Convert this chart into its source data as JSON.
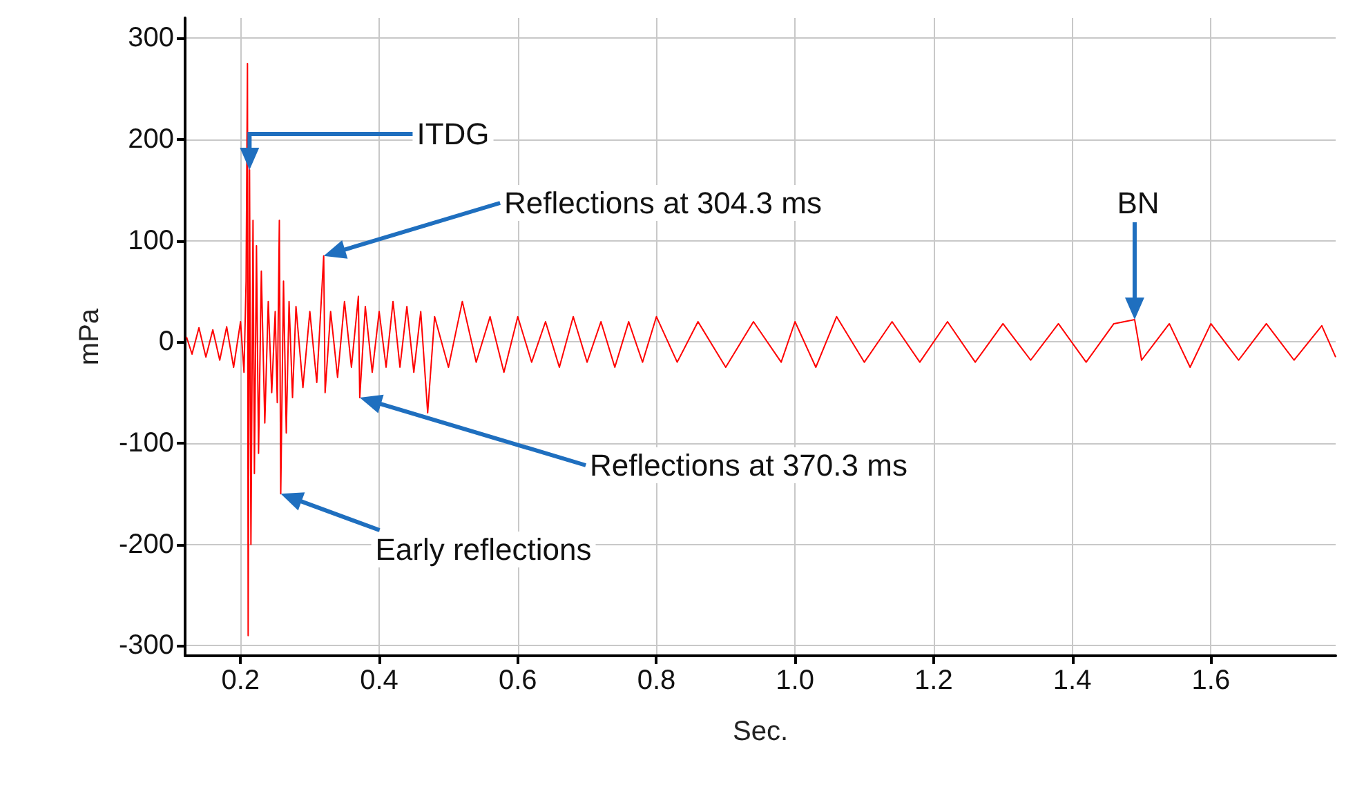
{
  "chart_data": {
    "type": "line",
    "xlabel": "Sec.",
    "ylabel": "mPa",
    "xlim": [
      0.12,
      1.78
    ],
    "ylim": [
      -310,
      320
    ],
    "xticks": [
      0.2,
      0.4,
      0.6,
      0.8,
      {
        "value": 1.0,
        "label": "1.0"
      },
      1.2,
      1.4,
      1.6
    ],
    "yticks": [
      -300,
      -200,
      -100,
      0,
      100,
      200,
      300
    ],
    "grid": true,
    "marker": "none",
    "line_style": "solid",
    "x": [
      0.122,
      0.13,
      0.14,
      0.15,
      0.16,
      0.17,
      0.18,
      0.19,
      0.2,
      0.205,
      0.208,
      0.21,
      0.211,
      0.213,
      0.215,
      0.218,
      0.22,
      0.223,
      0.226,
      0.23,
      0.235,
      0.24,
      0.245,
      0.25,
      0.253,
      0.256,
      0.258,
      0.262,
      0.266,
      0.27,
      0.275,
      0.28,
      0.29,
      0.3,
      0.31,
      0.32,
      0.322,
      0.33,
      0.34,
      0.35,
      0.36,
      0.37,
      0.372,
      0.38,
      0.39,
      0.4,
      0.41,
      0.42,
      0.43,
      0.44,
      0.45,
      0.46,
      0.47,
      0.48,
      0.5,
      0.52,
      0.54,
      0.56,
      0.58,
      0.6,
      0.62,
      0.64,
      0.66,
      0.68,
      0.7,
      0.72,
      0.74,
      0.76,
      0.78,
      0.8,
      0.83,
      0.86,
      0.9,
      0.94,
      0.98,
      1.0,
      1.03,
      1.06,
      1.1,
      1.14,
      1.18,
      1.22,
      1.26,
      1.3,
      1.34,
      1.38,
      1.42,
      1.46,
      1.49,
      1.5,
      1.54,
      1.57,
      1.6,
      1.64,
      1.68,
      1.72,
      1.76,
      1.78
    ],
    "series": [
      {
        "color": "#ff0000",
        "values": [
          5,
          -12,
          14,
          -15,
          12,
          -18,
          15,
          -25,
          20,
          -30,
          60,
          275,
          -290,
          170,
          -200,
          120,
          -130,
          95,
          -110,
          70,
          -80,
          40,
          -50,
          30,
          -60,
          120,
          -150,
          60,
          -90,
          40,
          -55,
          35,
          -45,
          30,
          -40,
          85,
          -50,
          30,
          -35,
          40,
          -25,
          45,
          -55,
          35,
          -30,
          30,
          -25,
          40,
          -25,
          35,
          -30,
          30,
          -70,
          25,
          -25,
          40,
          -20,
          25,
          -30,
          25,
          -20,
          20,
          -25,
          25,
          -20,
          20,
          -25,
          20,
          -20,
          25,
          -20,
          20,
          -25,
          20,
          -20,
          20,
          -25,
          25,
          -20,
          20,
          -20,
          20,
          -20,
          18,
          -18,
          18,
          -20,
          18,
          22,
          -18,
          18,
          -25,
          18,
          -18,
          18,
          -18,
          16,
          -15
        ]
      }
    ],
    "annotations": [
      {
        "text": "ITDG",
        "x": 0.213,
        "y": 170
      },
      {
        "text": "Reflections at 304.3 ms",
        "x": 0.32,
        "y": 85
      },
      {
        "text": "Reflections at 370.3 ms",
        "x": 0.372,
        "y": -55
      },
      {
        "text": "Early reflections",
        "x": 0.258,
        "y": -150
      },
      {
        "text": "BN",
        "x": 1.49,
        "y": 22
      }
    ]
  }
}
